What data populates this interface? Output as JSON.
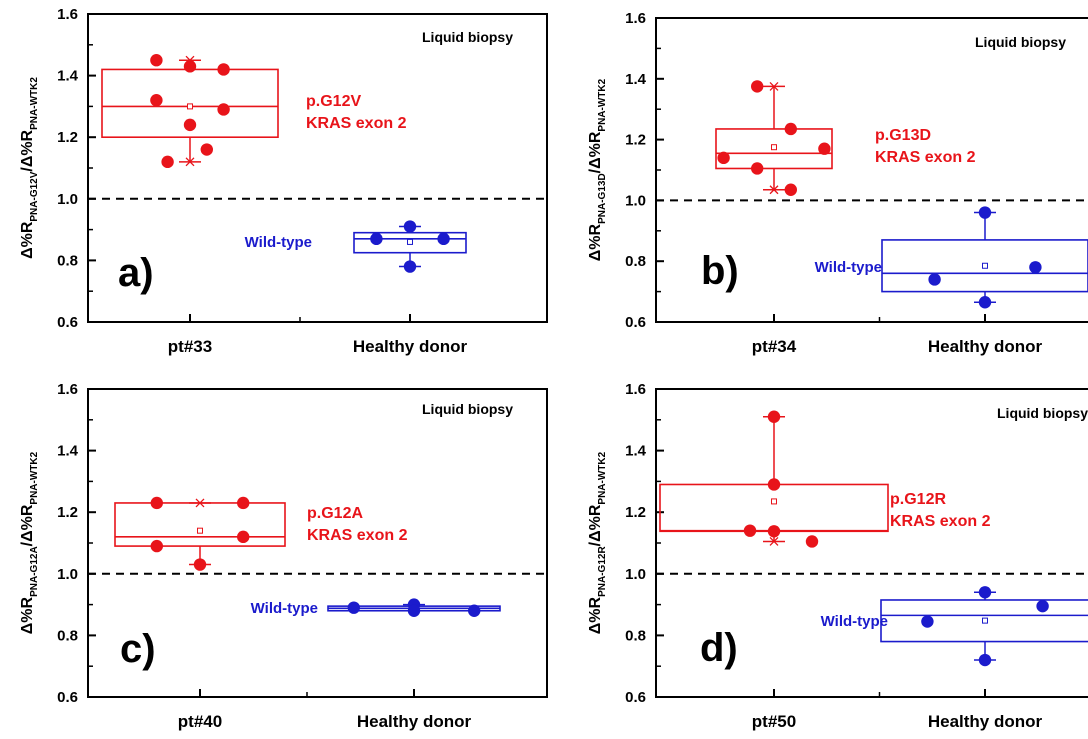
{
  "colors": {
    "axis": "#000000",
    "mutant": "#e8141a",
    "wild": "#1b1bcc"
  },
  "chart_data": [
    {
      "type": "box",
      "panel_letter": "a)",
      "ylabel": {
        "main": "Δ%R",
        "sub1": "PNA-G12V",
        "sep": "/Δ%R",
        "sub2": "PNA-WTK2"
      },
      "ylim": [
        0.6,
        1.6
      ],
      "yticks": [
        {
          "v": 0.6,
          "t": "0.6"
        },
        {
          "v": 0.8,
          "t": "0.8"
        },
        {
          "v": 1.0,
          "t": "1.0"
        },
        {
          "v": 1.2,
          "t": "1.2"
        },
        {
          "v": 1.4,
          "t": "1.4"
        },
        {
          "v": 1.6,
          "t": "1.6"
        }
      ],
      "threshold": 1.0,
      "categories": [
        "pt#33",
        "Healthy donor"
      ],
      "corner_label": "Liquid biopsy",
      "mutation": {
        "line1": "p.G12V",
        "line2": "KRAS exon 2"
      },
      "wildtype_label": "Wild-type",
      "series": [
        {
          "kind": "mutant",
          "category": 0,
          "box": [
            1.2,
            1.42
          ],
          "median": 1.3,
          "mean": 1.3,
          "whisker": [
            1.12,
            1.45
          ],
          "minmax": [
            1.12,
            1.45
          ],
          "points": [
            {
              "x": -0.6,
              "y": 1.45
            },
            {
              "x": -0.6,
              "y": 1.32
            },
            {
              "x": -0.4,
              "y": 1.12
            },
            {
              "x": 0.0,
              "y": 1.43
            },
            {
              "x": 0.0,
              "y": 1.24
            },
            {
              "x": 0.3,
              "y": 1.16
            },
            {
              "x": 0.6,
              "y": 1.42
            },
            {
              "x": 0.6,
              "y": 1.29
            }
          ]
        },
        {
          "kind": "wild",
          "category": 1,
          "box": [
            0.825,
            0.89
          ],
          "median": 0.87,
          "mean": 0.86,
          "whisker": [
            0.78,
            0.91
          ],
          "minmax": [
            0.78,
            0.91
          ],
          "points": [
            {
              "x": -0.6,
              "y": 0.87
            },
            {
              "x": 0.0,
              "y": 0.91
            },
            {
              "x": 0.0,
              "y": 0.78
            },
            {
              "x": 0.6,
              "y": 0.87
            }
          ]
        }
      ]
    },
    {
      "type": "box",
      "panel_letter": "b)",
      "ylabel": {
        "main": "Δ%R",
        "sub1": "PNA-G13D",
        "sep": "/Δ%R",
        "sub2": "PNA-WTK2"
      },
      "ylim": [
        0.6,
        1.6
      ],
      "yticks": [
        {
          "v": 0.6,
          "t": "0.6"
        },
        {
          "v": 0.8,
          "t": "0.8"
        },
        {
          "v": 1.0,
          "t": "1.0"
        },
        {
          "v": 1.2,
          "t": "1.2"
        },
        {
          "v": 1.4,
          "t": "1.4"
        },
        {
          "v": 1.6,
          "t": "1.6"
        }
      ],
      "threshold": 1.0,
      "categories": [
        "pt#34",
        "Healthy donor"
      ],
      "corner_label": "Liquid biopsy",
      "mutation": {
        "line1": "p.G13D",
        "line2": "KRAS exon 2"
      },
      "wildtype_label": "Wild-type",
      "series": [
        {
          "kind": "mutant",
          "category": 0,
          "box": [
            1.105,
            1.235
          ],
          "median": 1.155,
          "mean": 1.175,
          "whisker": [
            1.035,
            1.375
          ],
          "minmax": [
            1.035,
            1.375
          ],
          "points": [
            {
              "x": -0.6,
              "y": 1.14
            },
            {
              "x": -0.2,
              "y": 1.105
            },
            {
              "x": -0.2,
              "y": 1.375
            },
            {
              "x": 0.2,
              "y": 1.235
            },
            {
              "x": 0.2,
              "y": 1.035
            },
            {
              "x": 0.6,
              "y": 1.17
            }
          ]
        },
        {
          "kind": "wild",
          "category": 1,
          "box": [
            0.7,
            0.87
          ],
          "median": 0.76,
          "mean": 0.785,
          "whisker": [
            0.665,
            0.96
          ],
          "minmax": [
            0.665,
            0.96
          ],
          "points": [
            {
              "x": -0.6,
              "y": 0.74
            },
            {
              "x": 0.0,
              "y": 0.96
            },
            {
              "x": 0.0,
              "y": 0.665
            },
            {
              "x": 0.6,
              "y": 0.78
            }
          ]
        }
      ]
    },
    {
      "type": "box",
      "panel_letter": "c)",
      "ylabel": {
        "main": "Δ%R",
        "sub1": "PNA-G12A",
        "sep": "/Δ%R",
        "sub2": "PNA-WTK2"
      },
      "ylim": [
        0.6,
        1.6
      ],
      "yticks": [
        {
          "v": 0.6,
          "t": "0.6"
        },
        {
          "v": 0.8,
          "t": "0.8"
        },
        {
          "v": 1.0,
          "t": "1.0"
        },
        {
          "v": 1.2,
          "t": "1.2"
        },
        {
          "v": 1.4,
          "t": "1.4"
        },
        {
          "v": 1.6,
          "t": "1.6"
        }
      ],
      "threshold": 1.0,
      "categories": [
        "pt#40",
        "Healthy donor"
      ],
      "corner_label": "Liquid biopsy",
      "mutation": {
        "line1": "p.G12A",
        "line2": "KRAS exon 2"
      },
      "wildtype_label": "Wild-type",
      "series": [
        {
          "kind": "mutant",
          "category": 0,
          "box": [
            1.09,
            1.23
          ],
          "median": 1.12,
          "mean": 1.14,
          "whisker": [
            1.03,
            1.23
          ],
          "minmax": [
            1.03,
            1.23
          ],
          "points": [
            {
              "x": -0.6,
              "y": 1.23
            },
            {
              "x": -0.6,
              "y": 1.09
            },
            {
              "x": 0.0,
              "y": 1.03
            },
            {
              "x": 0.6,
              "y": 1.23
            },
            {
              "x": 0.6,
              "y": 1.12
            }
          ]
        },
        {
          "kind": "wild",
          "category": 1,
          "box": [
            0.88,
            0.895
          ],
          "median": 0.888,
          "mean": 0.889,
          "whisker": [
            0.88,
            0.9
          ],
          "minmax": [
            0.88,
            0.9
          ],
          "points": [
            {
              "x": -0.7,
              "y": 0.89
            },
            {
              "x": 0.0,
              "y": 0.9
            },
            {
              "x": 0.0,
              "y": 0.88
            },
            {
              "x": 0.7,
              "y": 0.88
            }
          ]
        }
      ]
    },
    {
      "type": "box",
      "panel_letter": "d)",
      "ylabel": {
        "main": "Δ%R",
        "sub1": "PNA-G12R",
        "sep": "/Δ%R",
        "sub2": "PNA-WTK2"
      },
      "ylim": [
        0.6,
        1.6
      ],
      "yticks": [
        {
          "v": 0.6,
          "t": "0.6"
        },
        {
          "v": 0.8,
          "t": "0.8"
        },
        {
          "v": 1.0,
          "t": "1.0"
        },
        {
          "v": 1.2,
          "t": "1.2"
        },
        {
          "v": 1.4,
          "t": "1.4"
        },
        {
          "v": 1.6,
          "t": "1.6"
        }
      ],
      "threshold": 1.0,
      "categories": [
        "pt#50",
        "Healthy donor"
      ],
      "corner_label": "Liquid biopsy",
      "mutation": {
        "line1": "p.G12R",
        "line2": "KRAS exon 2"
      },
      "wildtype_label": "Wild-type",
      "series": [
        {
          "kind": "mutant",
          "category": 0,
          "box": [
            1.138,
            1.29
          ],
          "median": 1.14,
          "mean": 1.235,
          "whisker": [
            1.105,
            1.51
          ],
          "minmax": [
            1.105,
            1.51
          ],
          "points": [
            {
              "x": -0.6,
              "y": 1.14
            },
            {
              "x": 0.0,
              "y": 1.51
            },
            {
              "x": 0.0,
              "y": 1.29
            },
            {
              "x": 0.0,
              "y": 1.138
            },
            {
              "x": 0.95,
              "y": 1.105
            }
          ]
        },
        {
          "kind": "wild",
          "category": 1,
          "box": [
            0.78,
            0.915
          ],
          "median": 0.865,
          "mean": 0.848,
          "whisker": [
            0.72,
            0.94
          ],
          "minmax": [
            0.72,
            0.94
          ],
          "points": [
            {
              "x": -0.6,
              "y": 0.845
            },
            {
              "x": 0.0,
              "y": 0.94
            },
            {
              "x": 0.0,
              "y": 0.72
            },
            {
              "x": 0.6,
              "y": 0.895
            }
          ]
        }
      ]
    }
  ]
}
